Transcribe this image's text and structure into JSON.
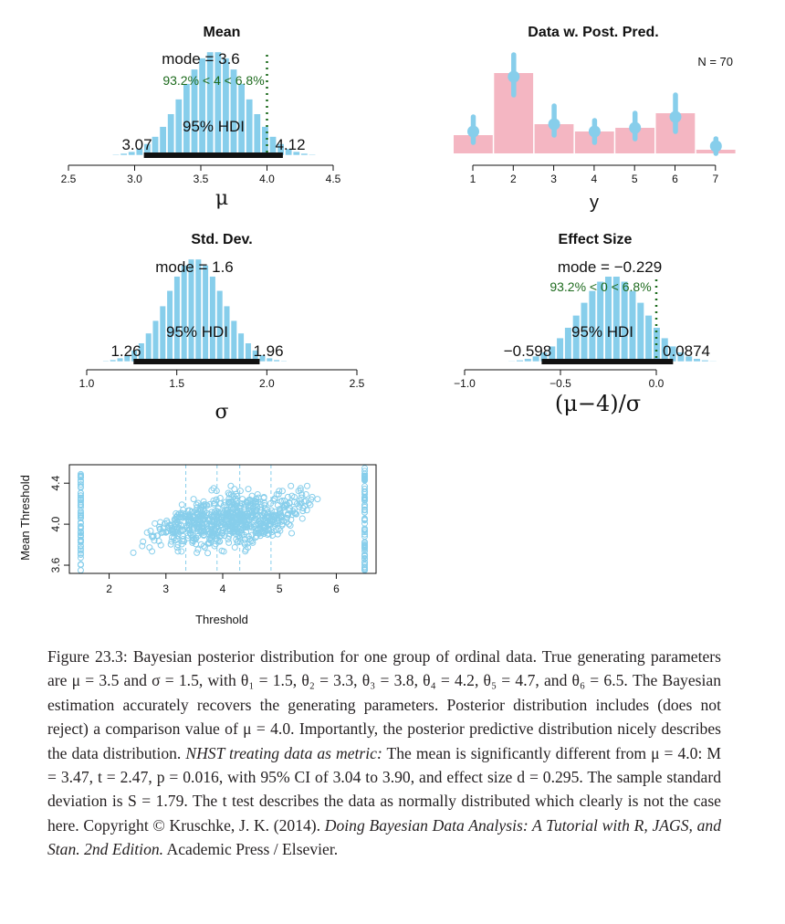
{
  "colors": {
    "bar": "#87CEEB",
    "hdi": "#111111",
    "comp": "#1e6b1e",
    "pink": "#F4B6C2",
    "pred": "#87CEEB"
  },
  "chart_data": [
    {
      "type": "histogram",
      "title": "Mean",
      "xlabel": "μ",
      "xlim": [
        2.5,
        4.5
      ],
      "xticks": [
        "2.5",
        "3.0",
        "3.5",
        "4.0",
        "4.5"
      ],
      "mode_label": "mode = 3.6",
      "mode": 3.6,
      "sd": 0.24,
      "comparison_label": "93.2% < 4 < 6.8%",
      "comparison_value": 4.0,
      "hdi_label": "95% HDI",
      "hdi": [
        3.07,
        4.12
      ],
      "hdi_low_label": "3.07",
      "hdi_high_label": "4.12"
    },
    {
      "type": "bar",
      "title": "Data w. Post. Pred.",
      "xlabel": "y",
      "annotation": "N = 70",
      "categories": [
        "1",
        "2",
        "3",
        "4",
        "5",
        "6",
        "7"
      ],
      "proportions": [
        0.05,
        0.22,
        0.08,
        0.06,
        0.07,
        0.11,
        0.01
      ],
      "predicted_median": [
        0.06,
        0.21,
        0.08,
        0.06,
        0.07,
        0.1,
        0.02
      ],
      "predicted_interval": [
        [
          0.03,
          0.1
        ],
        [
          0.16,
          0.27
        ],
        [
          0.05,
          0.13
        ],
        [
          0.03,
          0.09
        ],
        [
          0.04,
          0.11
        ],
        [
          0.06,
          0.16
        ],
        [
          0.0,
          0.04
        ]
      ]
    },
    {
      "type": "histogram",
      "title": "Std. Dev.",
      "xlabel": "σ",
      "xlim": [
        1.0,
        2.5
      ],
      "xticks": [
        "1.0",
        "1.5",
        "2.0",
        "2.5"
      ],
      "mode_label": "mode = 1.6",
      "mode": 1.6,
      "sd": 0.16,
      "hdi_label": "95% HDI",
      "hdi": [
        1.26,
        1.96
      ],
      "hdi_low_label": "1.26",
      "hdi_high_label": "1.96"
    },
    {
      "type": "histogram",
      "title": "Effect Size",
      "xlabel": "(μ−4)/σ",
      "xlim": [
        -1.0,
        0.0
      ],
      "xticks": [
        "−1.0",
        "−0.5",
        "0.0"
      ],
      "mode_label": "mode = −0.229",
      "mode": -0.229,
      "sd": 0.17,
      "comparison_label": "93.2% < 0 < 6.8%",
      "comparison_value": 0.0,
      "hdi_label": "95% HDI",
      "hdi": [
        -0.598,
        0.0874
      ],
      "hdi_low_label": "−0.598",
      "hdi_high_label": "0.0874"
    },
    {
      "type": "scatter",
      "xlabel": "Threshold",
      "ylabel": "Mean Threshold",
      "xlim": [
        1.3,
        6.7
      ],
      "ylim": [
        3.52,
        4.58
      ],
      "xticks": [
        "2",
        "3",
        "4",
        "5",
        "6"
      ],
      "yticks": [
        "3.6",
        "4.0",
        "4.4"
      ],
      "threshold_means": [
        1.5,
        3.35,
        3.9,
        4.3,
        4.85,
        6.5
      ]
    }
  ],
  "caption": {
    "p1": "Figure 23.3: Bayesian posterior distribution for one group of ordinal data. True generating parameters are μ = 3.5 and σ = 1.5, with θ₁ = 1.5, θ₂ = 3.3, θ₃ = 3.8, θ₄ = 4.2, θ₅ = 4.7, and θ₆ = 6.5. The Bayesian estimation accurately recovers the generating parameters. Posterior distribution includes (does not reject) a comparison value of μ = 4.0. Importantly, the posterior predictive distribution nicely describes the data distribution.",
    "nhst": "NHST treating data as metric:",
    "p2": "The mean is significantly different from μ = 4.0: M = 3.47, t = 2.47, p = 0.016, with 95% CI of 3.04 to 3.90, and effect size d = 0.295. The sample standard deviation is S = 1.79. The t test describes the data as normally distributed which clearly is not the case here. Copyright © Kruschke, J. K. (2014).",
    "book": "Doing Bayesian Data Analysis: A Tutorial with R, JAGS, and Stan. 2nd Edition.",
    "p3": "Academic Press / Elsevier."
  }
}
